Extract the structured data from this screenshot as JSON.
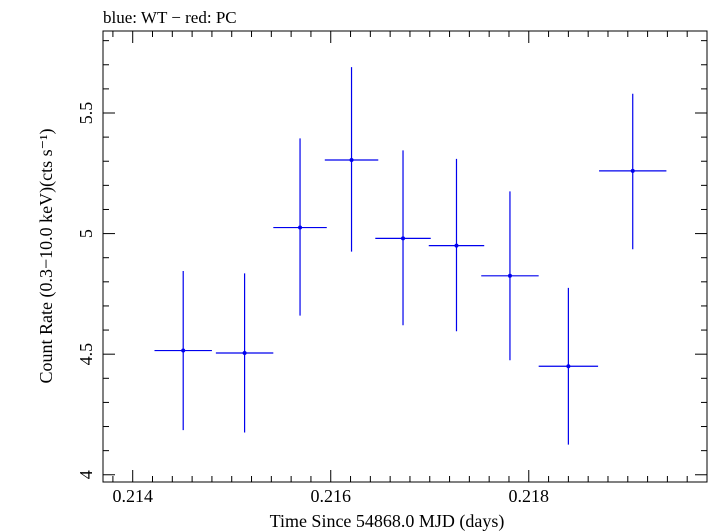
{
  "chart_data": {
    "type": "scatter",
    "title": "blue: WT − red: PC",
    "xlabel": "Time Since 54868.0 MJD (days)",
    "ylabel": "Count Rate (0.3−10.0 keV)(cts s⁻¹)",
    "xlim": [
      0.2137,
      0.2198
    ],
    "ylim": [
      3.97,
      5.84
    ],
    "x_ticks": [
      {
        "value": 0.214,
        "label": "0.214"
      },
      {
        "value": 0.216,
        "label": "0.216"
      },
      {
        "value": 0.218,
        "label": "0.218"
      }
    ],
    "y_ticks": [
      {
        "value": 4,
        "label": "4"
      },
      {
        "value": 4.5,
        "label": "4.5"
      },
      {
        "value": 5,
        "label": "5"
      },
      {
        "value": 5.5,
        "label": "5.5"
      }
    ],
    "series": [
      {
        "color": "#0000ee",
        "points": [
          {
            "x": 0.21451,
            "xerr": 0.00029,
            "y": 4.515,
            "yerr_lo": 0.33,
            "yerr_hi": 0.33
          },
          {
            "x": 0.21513,
            "xerr": 0.00029,
            "y": 4.505,
            "yerr_lo": 0.33,
            "yerr_hi": 0.33
          },
          {
            "x": 0.21569,
            "xerr": 0.00027,
            "y": 5.025,
            "yerr_lo": 0.365,
            "yerr_hi": 0.37
          },
          {
            "x": 0.21621,
            "xerr": 0.00027,
            "y": 5.305,
            "yerr_lo": 0.38,
            "yerr_hi": 0.385
          },
          {
            "x": 0.21673,
            "xerr": 0.00028,
            "y": 4.98,
            "yerr_lo": 0.36,
            "yerr_hi": 0.365
          },
          {
            "x": 0.21727,
            "xerr": 0.00028,
            "y": 4.95,
            "yerr_lo": 0.355,
            "yerr_hi": 0.36
          },
          {
            "x": 0.21781,
            "xerr": 0.00029,
            "y": 4.825,
            "yerr_lo": 0.35,
            "yerr_hi": 0.35
          },
          {
            "x": 0.2184,
            "xerr": 0.0003,
            "y": 4.45,
            "yerr_lo": 0.325,
            "yerr_hi": 0.325
          },
          {
            "x": 0.21905,
            "xerr": 0.00034,
            "y": 5.26,
            "yerr_lo": 0.325,
            "yerr_hi": 0.32
          }
        ]
      }
    ]
  }
}
